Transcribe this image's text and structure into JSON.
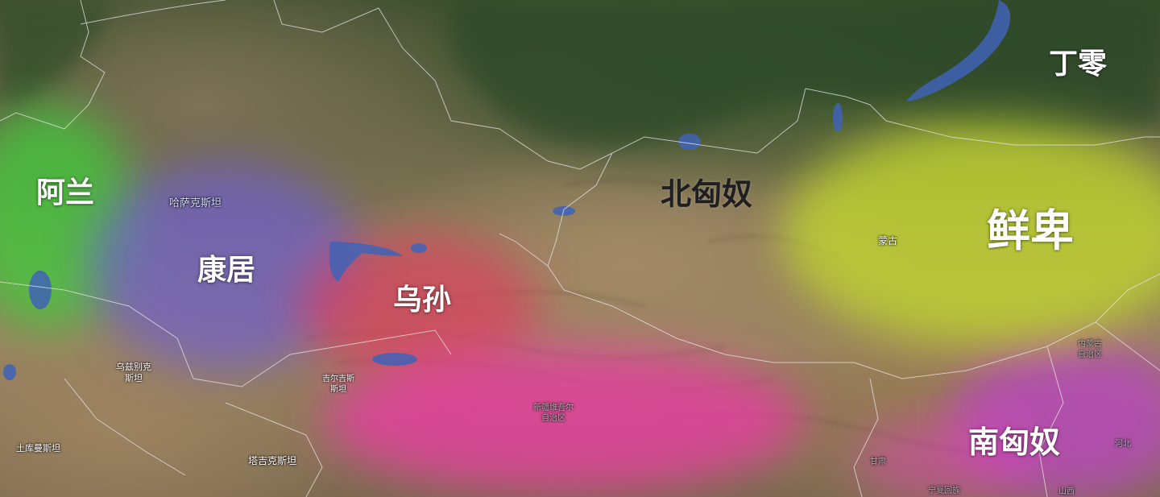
{
  "map": {
    "colors": {
      "alan": "#3dd23a",
      "kangju": "#6a5cd8",
      "wusun": "#e23a5e",
      "xianbei": "#c8e22a",
      "xiongnu_south": "#e83ac8",
      "tarim": "#ee3aa6",
      "border": "#e6e6e6",
      "water": "#3f63b6"
    },
    "regions": {
      "alan": "阿兰",
      "kangju": "康居",
      "wusun": "乌孙",
      "north_xiongnu": "北匈奴",
      "xianbei": "鲜卑",
      "dingling": "丁零",
      "south_xiongnu": "南匈奴"
    },
    "places": {
      "kazakhstan": "哈萨克斯坦",
      "mongolia": "蒙古",
      "uzbekistan_1": "乌兹别克",
      "uzbekistan_2": "斯坦",
      "kyrgyzstan_1": "吉尔吉斯",
      "kyrgyzstan_2": "斯坦",
      "turkmenistan": "土库曼斯坦",
      "tajikistan": "塔吉克斯坦",
      "xinjiang_1": "新疆维吾尔",
      "xinjiang_2": "自治区",
      "gansu": "甘肃",
      "ningxia": "宁夏回族",
      "inner_mongolia_1": "内蒙古",
      "inner_mongolia_2": "自治区",
      "hebei": "河北",
      "shanxi": "山西"
    }
  }
}
